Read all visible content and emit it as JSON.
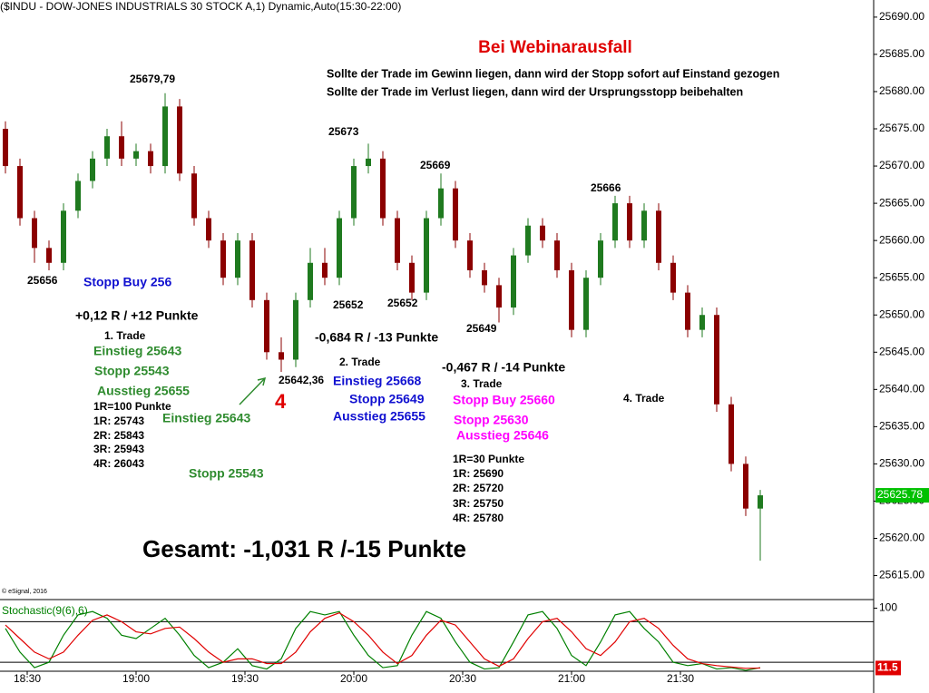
{
  "chart_data": [
    {
      "type": "candlestick",
      "title": "($INDU - DOW-JONES INDUSTRIALS 30 STOCK A,1) Dynamic,Auto(15:30-22:00)",
      "copyright": "© eSignal, 2016",
      "x": [
        "18:22",
        "18:26",
        "18:30",
        "18:34",
        "18:38",
        "18:42",
        "18:46",
        "18:50",
        "18:54",
        "18:58",
        "19:02",
        "19:06",
        "19:10",
        "19:14",
        "19:18",
        "19:22",
        "19:26",
        "19:30",
        "19:34",
        "19:38",
        "19:42",
        "19:46",
        "19:50",
        "19:54",
        "19:58",
        "20:02",
        "20:06",
        "20:10",
        "20:14",
        "20:18",
        "20:22",
        "20:26",
        "20:30",
        "20:34",
        "20:38",
        "20:42",
        "20:46",
        "20:50",
        "20:54",
        "20:58",
        "21:02",
        "21:06",
        "21:10",
        "21:14",
        "21:18",
        "21:22",
        "21:26",
        "21:30",
        "21:34",
        "21:38",
        "21:42",
        "21:46",
        "21:50"
      ],
      "open": [
        25675,
        25670,
        25663,
        25659,
        25657,
        25664,
        25668,
        25671,
        25674,
        25671,
        25672,
        25670,
        25678,
        25669,
        25663,
        25660,
        25655,
        25660,
        25652,
        25645,
        25644,
        25652,
        25657,
        25655,
        25663,
        25670,
        25671,
        25663,
        25657,
        25653,
        25663,
        25667,
        25660,
        25656,
        25654,
        25651,
        25658,
        25662,
        25660,
        25656,
        25648,
        25655,
        25660,
        25665,
        25660,
        25664,
        25657,
        25653,
        25648,
        25650,
        25638,
        25630,
        25624
      ],
      "high": [
        25676,
        25671,
        25664,
        25660,
        25665,
        25669,
        25672,
        25675,
        25676,
        25673,
        25673,
        25679.79,
        25679,
        25670,
        25664,
        25661,
        25661,
        25661,
        25653,
        25647,
        25653,
        25659,
        25659,
        25664,
        25671,
        25673,
        25672,
        25664,
        25658,
        25664,
        25669,
        25668,
        25661,
        25657,
        25655,
        25659,
        25663,
        25663,
        25661,
        25657,
        25656,
        25661,
        25666,
        25666,
        25665,
        25665,
        25658,
        25654,
        25651,
        25651,
        25639,
        25631,
        25626.5
      ],
      "low": [
        25669,
        25662,
        25657,
        25656,
        25656,
        25663,
        25667,
        25670,
        25670,
        25670,
        25669,
        25669,
        25668,
        25662,
        25659,
        25654,
        25654,
        25651,
        25644,
        25642.36,
        25643,
        25651,
        25654,
        25654,
        25662,
        25669,
        25662,
        25656,
        25652,
        25652,
        25662,
        25659,
        25655,
        25653,
        25649,
        25650,
        25657,
        25659,
        25655,
        25647,
        25647,
        25654,
        25659,
        25659,
        25659,
        25656,
        25652,
        25647,
        25647,
        25637,
        25629,
        25623,
        25617
      ],
      "close": [
        25670,
        25663,
        25659,
        25657,
        25664,
        25668,
        25671,
        25674,
        25671,
        25672,
        25670,
        25678,
        25669,
        25663,
        25660,
        25655,
        25660,
        25652,
        25645,
        25644,
        25652,
        25657,
        25655,
        25663,
        25670,
        25671,
        25663,
        25657,
        25653,
        25663,
        25667,
        25660,
        25656,
        25654,
        25651,
        25658,
        25662,
        25660,
        25656,
        25648,
        25655,
        25660,
        25665,
        25660,
        25664,
        25657,
        25653,
        25648,
        25650,
        25638,
        25630,
        25624,
        25625.78
      ],
      "up_color": "#1f7a1f",
      "down_color": "#8b0000",
      "last_price": {
        "value": 25625.78,
        "label": "25625.78"
      },
      "last_color": "#00c000",
      "ylim": [
        25611.9,
        25692.3
      ],
      "yticks": [
        {
          "value": 25615,
          "label": "25615.00"
        },
        {
          "value": 25620,
          "label": "25620.00"
        },
        {
          "value": 25625,
          "label": "25625.00"
        },
        {
          "value": 25630,
          "label": "25630.00"
        },
        {
          "value": 25635,
          "label": "25635.00"
        },
        {
          "value": 25640,
          "label": "25640.00"
        },
        {
          "value": 25645,
          "label": "25645.00"
        },
        {
          "value": 25650,
          "label": "25650.00"
        },
        {
          "value": 25655,
          "label": "25655.00"
        },
        {
          "value": 25660,
          "label": "25660.00"
        },
        {
          "value": 25665,
          "label": "25665.00"
        },
        {
          "value": 25670,
          "label": "25670.00"
        },
        {
          "value": 25675,
          "label": "25675.00"
        },
        {
          "value": 25680,
          "label": "25680.00"
        },
        {
          "value": 25685,
          "label": "25685.00"
        },
        {
          "value": 25690,
          "label": "25690.00"
        }
      ],
      "xticks": [
        "18:30",
        "19:00",
        "19:30",
        "20:00",
        "20:30",
        "21:00",
        "21:30"
      ],
      "annotations": [
        "Bei Webinarausfall",
        "Sollte der Trade im Gewinn liegen, dann wird der Stopp sofort auf Einstand gezogen",
        "Sollte der Trade im Verlust liegen, dann wird der Ursprungsstopp beibehalten",
        "25679,79",
        "25656",
        "Stopp Buy 256",
        "+0,12 R / +12 Punkte",
        "1. Trade",
        "Einstieg 25643",
        "Stopp 25543",
        "Ausstieg 25655",
        "1R=100 Punkte",
        "1R: 25743",
        "2R: 25843",
        "3R: 25943",
        "4R: 26043",
        "Einstieg 25643",
        "Stopp 25543",
        "25642,36",
        "4",
        "25673",
        "25652",
        "25652",
        "-0,684 R / -13 Punkte",
        "2. Trade",
        "Einstieg 25668",
        "Stopp 25649",
        "Ausstieg 25655",
        "25669",
        "25649",
        "-0,467 R / -14 Punkte",
        "3. Trade",
        "Stopp Buy 25660",
        "Stopp 25630",
        "Ausstieg 25646",
        "1R=30 Punkte",
        "1R: 25690",
        "2R: 25720",
        "3R: 25750",
        "4R: 25780",
        "25666",
        "4. Trade",
        "Gesamt: -1,031 R /-15 Punkte"
      ]
    },
    {
      "type": "line",
      "title": "Stochastic(9(6),6)",
      "x": [
        "18:22",
        "18:26",
        "18:30",
        "18:34",
        "18:38",
        "18:42",
        "18:46",
        "18:50",
        "18:54",
        "18:58",
        "19:02",
        "19:06",
        "19:10",
        "19:14",
        "19:18",
        "19:22",
        "19:26",
        "19:30",
        "19:34",
        "19:38",
        "19:42",
        "19:46",
        "19:50",
        "19:54",
        "19:58",
        "20:02",
        "20:06",
        "20:10",
        "20:14",
        "20:18",
        "20:22",
        "20:26",
        "20:30",
        "20:34",
        "20:38",
        "20:42",
        "20:46",
        "20:50",
        "20:54",
        "20:58",
        "21:02",
        "21:06",
        "21:10",
        "21:14",
        "21:18",
        "21:22",
        "21:26",
        "21:30",
        "21:34",
        "21:38",
        "21:42",
        "21:46",
        "21:50"
      ],
      "series": [
        {
          "name": "%K",
          "color": "#008000",
          "values": [
            70,
            35,
            12,
            20,
            60,
            90,
            95,
            85,
            60,
            55,
            70,
            85,
            60,
            30,
            12,
            20,
            40,
            15,
            10,
            25,
            70,
            95,
            90,
            95,
            60,
            30,
            12,
            15,
            60,
            95,
            85,
            50,
            20,
            10,
            12,
            50,
            90,
            95,
            70,
            30,
            15,
            50,
            90,
            95,
            70,
            50,
            20,
            15,
            18,
            10,
            12,
            8,
            12
          ]
        },
        {
          "name": "%D",
          "color": "#e00000",
          "values": [
            75,
            55,
            35,
            25,
            35,
            60,
            82,
            90,
            80,
            65,
            62,
            70,
            72,
            55,
            35,
            20,
            25,
            25,
            18,
            18,
            35,
            65,
            85,
            93,
            80,
            60,
            35,
            18,
            30,
            60,
            82,
            75,
            50,
            25,
            14,
            25,
            55,
            80,
            85,
            65,
            40,
            30,
            50,
            80,
            85,
            70,
            45,
            25,
            18,
            15,
            13,
            11,
            11.5
          ]
        }
      ],
      "levels": [
        80,
        20
      ],
      "last_value": {
        "value": 11.5,
        "label": "11.5"
      },
      "ylim": [
        0,
        110
      ],
      "yticks": [
        100
      ]
    }
  ]
}
